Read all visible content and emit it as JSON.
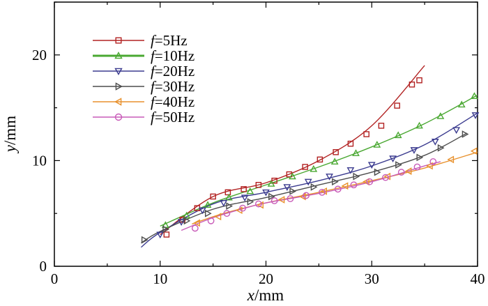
{
  "chart_data": {
    "type": "scatter",
    "title": "",
    "xlabel": {
      "symbol": "x",
      "unit": "/mm"
    },
    "ylabel": {
      "symbol": "y",
      "unit": "/mm"
    },
    "xlim": [
      0,
      40
    ],
    "ylim": [
      0,
      25
    ],
    "xticks": [
      "0",
      "10",
      "20",
      "30",
      "40"
    ],
    "yticks": [
      "0",
      "10",
      "20"
    ],
    "grid": false,
    "legend_position": "top-left",
    "series": [
      {
        "name": "f=5Hz",
        "symbol": "f",
        "label_rest": "=5Hz",
        "color": "#b22222",
        "marker": "square",
        "fit_x": [
          10.0,
          15.0,
          20.0,
          25.0,
          30.0,
          35.0
        ],
        "fit_y": [
          3.0,
          6.6,
          7.9,
          10.0,
          13.3,
          19.0
        ],
        "x": [
          10.6,
          12.1,
          13.5,
          15.0,
          16.4,
          17.9,
          19.3,
          20.8,
          22.2,
          23.7,
          25.1,
          26.6,
          28.0,
          29.5,
          30.9,
          32.4,
          33.8,
          34.5
        ],
        "y": [
          3.0,
          4.4,
          5.5,
          6.6,
          7.0,
          7.3,
          7.7,
          8.1,
          8.7,
          9.4,
          10.1,
          10.8,
          11.6,
          12.5,
          13.3,
          15.2,
          17.2,
          17.6
        ]
      },
      {
        "name": "f=10Hz",
        "symbol": "f",
        "label_rest": "=10Hz",
        "color": "#4aa832",
        "marker": "triangle-up",
        "fit_x": [
          10.0,
          15.0,
          20.0,
          25.0,
          30.0,
          35.0,
          40.0
        ],
        "fit_y": [
          3.8,
          6.0,
          7.7,
          9.4,
          11.3,
          13.5,
          16.2
        ],
        "x": [
          10.5,
          12.5,
          14.5,
          16.5,
          18.5,
          20.5,
          22.5,
          24.5,
          26.5,
          28.5,
          30.5,
          32.5,
          34.5,
          36.5,
          38.5,
          39.7
        ],
        "y": [
          3.9,
          4.8,
          5.8,
          6.5,
          7.1,
          7.8,
          8.5,
          9.2,
          9.9,
          10.7,
          11.5,
          12.4,
          13.3,
          14.2,
          15.3,
          16.1
        ]
      },
      {
        "name": "f=20Hz",
        "symbol": "f",
        "label_rest": "=20Hz",
        "color": "#3b3b8f",
        "marker": "triangle-down",
        "fit_x": [
          8.2,
          10.0,
          15.0,
          20.0,
          25.0,
          30.0,
          35.0,
          40.0
        ],
        "fit_y": [
          1.8,
          3.2,
          5.9,
          7.0,
          8.1,
          9.5,
          11.5,
          14.5
        ],
        "x": [
          10.0,
          12.0,
          14.0,
          16.0,
          18.0,
          20.0,
          22.0,
          24.0,
          26.0,
          28.0,
          30.0,
          32.0,
          34.0,
          36.0,
          38.0,
          39.8
        ],
        "y": [
          3.0,
          4.2,
          5.3,
          6.0,
          6.5,
          7.0,
          7.5,
          8.0,
          8.5,
          9.1,
          9.6,
          10.2,
          11.0,
          11.8,
          12.9,
          14.3
        ]
      },
      {
        "name": "f=30Hz",
        "symbol": "f",
        "label_rest": "=30Hz",
        "color": "#4d4d4d",
        "marker": "triangle-right",
        "fit_x": [
          8.2,
          10.0,
          15.0,
          20.0,
          25.0,
          30.0,
          35.0,
          39.0
        ],
        "fit_y": [
          2.2,
          3.3,
          5.4,
          6.5,
          7.7,
          8.9,
          10.5,
          12.6
        ],
        "x": [
          8.5,
          10.5,
          12.5,
          14.5,
          16.5,
          18.5,
          20.5,
          22.5,
          24.5,
          26.5,
          28.5,
          30.5,
          32.5,
          34.5,
          36.5,
          38.8
        ],
        "y": [
          2.5,
          3.5,
          4.3,
          5.0,
          5.7,
          6.1,
          6.6,
          7.1,
          7.5,
          8.0,
          8.5,
          8.9,
          9.6,
          10.3,
          11.2,
          12.5
        ]
      },
      {
        "name": "f=40Hz",
        "symbol": "f",
        "label_rest": "=40Hz",
        "color": "#e8912d",
        "marker": "triangle-left",
        "fit_x": [
          13.0,
          16.0,
          20.0,
          25.0,
          30.0,
          35.0,
          40.0
        ],
        "fit_y": [
          4.0,
          5.0,
          6.0,
          7.0,
          8.1,
          9.3,
          10.8
        ],
        "x": [
          13.5,
          15.5,
          17.5,
          19.5,
          21.5,
          23.5,
          25.5,
          27.5,
          29.5,
          31.5,
          33.5,
          35.5,
          37.5,
          39.7
        ],
        "y": [
          4.1,
          4.7,
          5.3,
          5.8,
          6.3,
          6.6,
          7.1,
          7.6,
          8.0,
          8.5,
          9.0,
          9.5,
          10.1,
          10.9
        ]
      },
      {
        "name": "f=50Hz",
        "symbol": "f",
        "label_rest": "=50Hz",
        "color": "#c85ab8",
        "marker": "circle",
        "fit_x": [
          12.0,
          15.0,
          18.0,
          20.0,
          25.0,
          30.0,
          35.0,
          36.5
        ],
        "fit_y": [
          3.4,
          4.6,
          5.5,
          6.0,
          6.9,
          8.0,
          9.5,
          9.9
        ],
        "x": [
          13.3,
          14.8,
          16.3,
          17.8,
          19.3,
          20.8,
          22.3,
          23.8,
          25.3,
          26.8,
          28.3,
          29.8,
          31.3,
          32.8,
          34.3,
          35.8
        ],
        "y": [
          3.6,
          4.3,
          5.0,
          5.5,
          5.9,
          6.2,
          6.4,
          6.7,
          7.0,
          7.3,
          7.7,
          8.0,
          8.4,
          8.9,
          9.4,
          9.9
        ]
      }
    ]
  }
}
